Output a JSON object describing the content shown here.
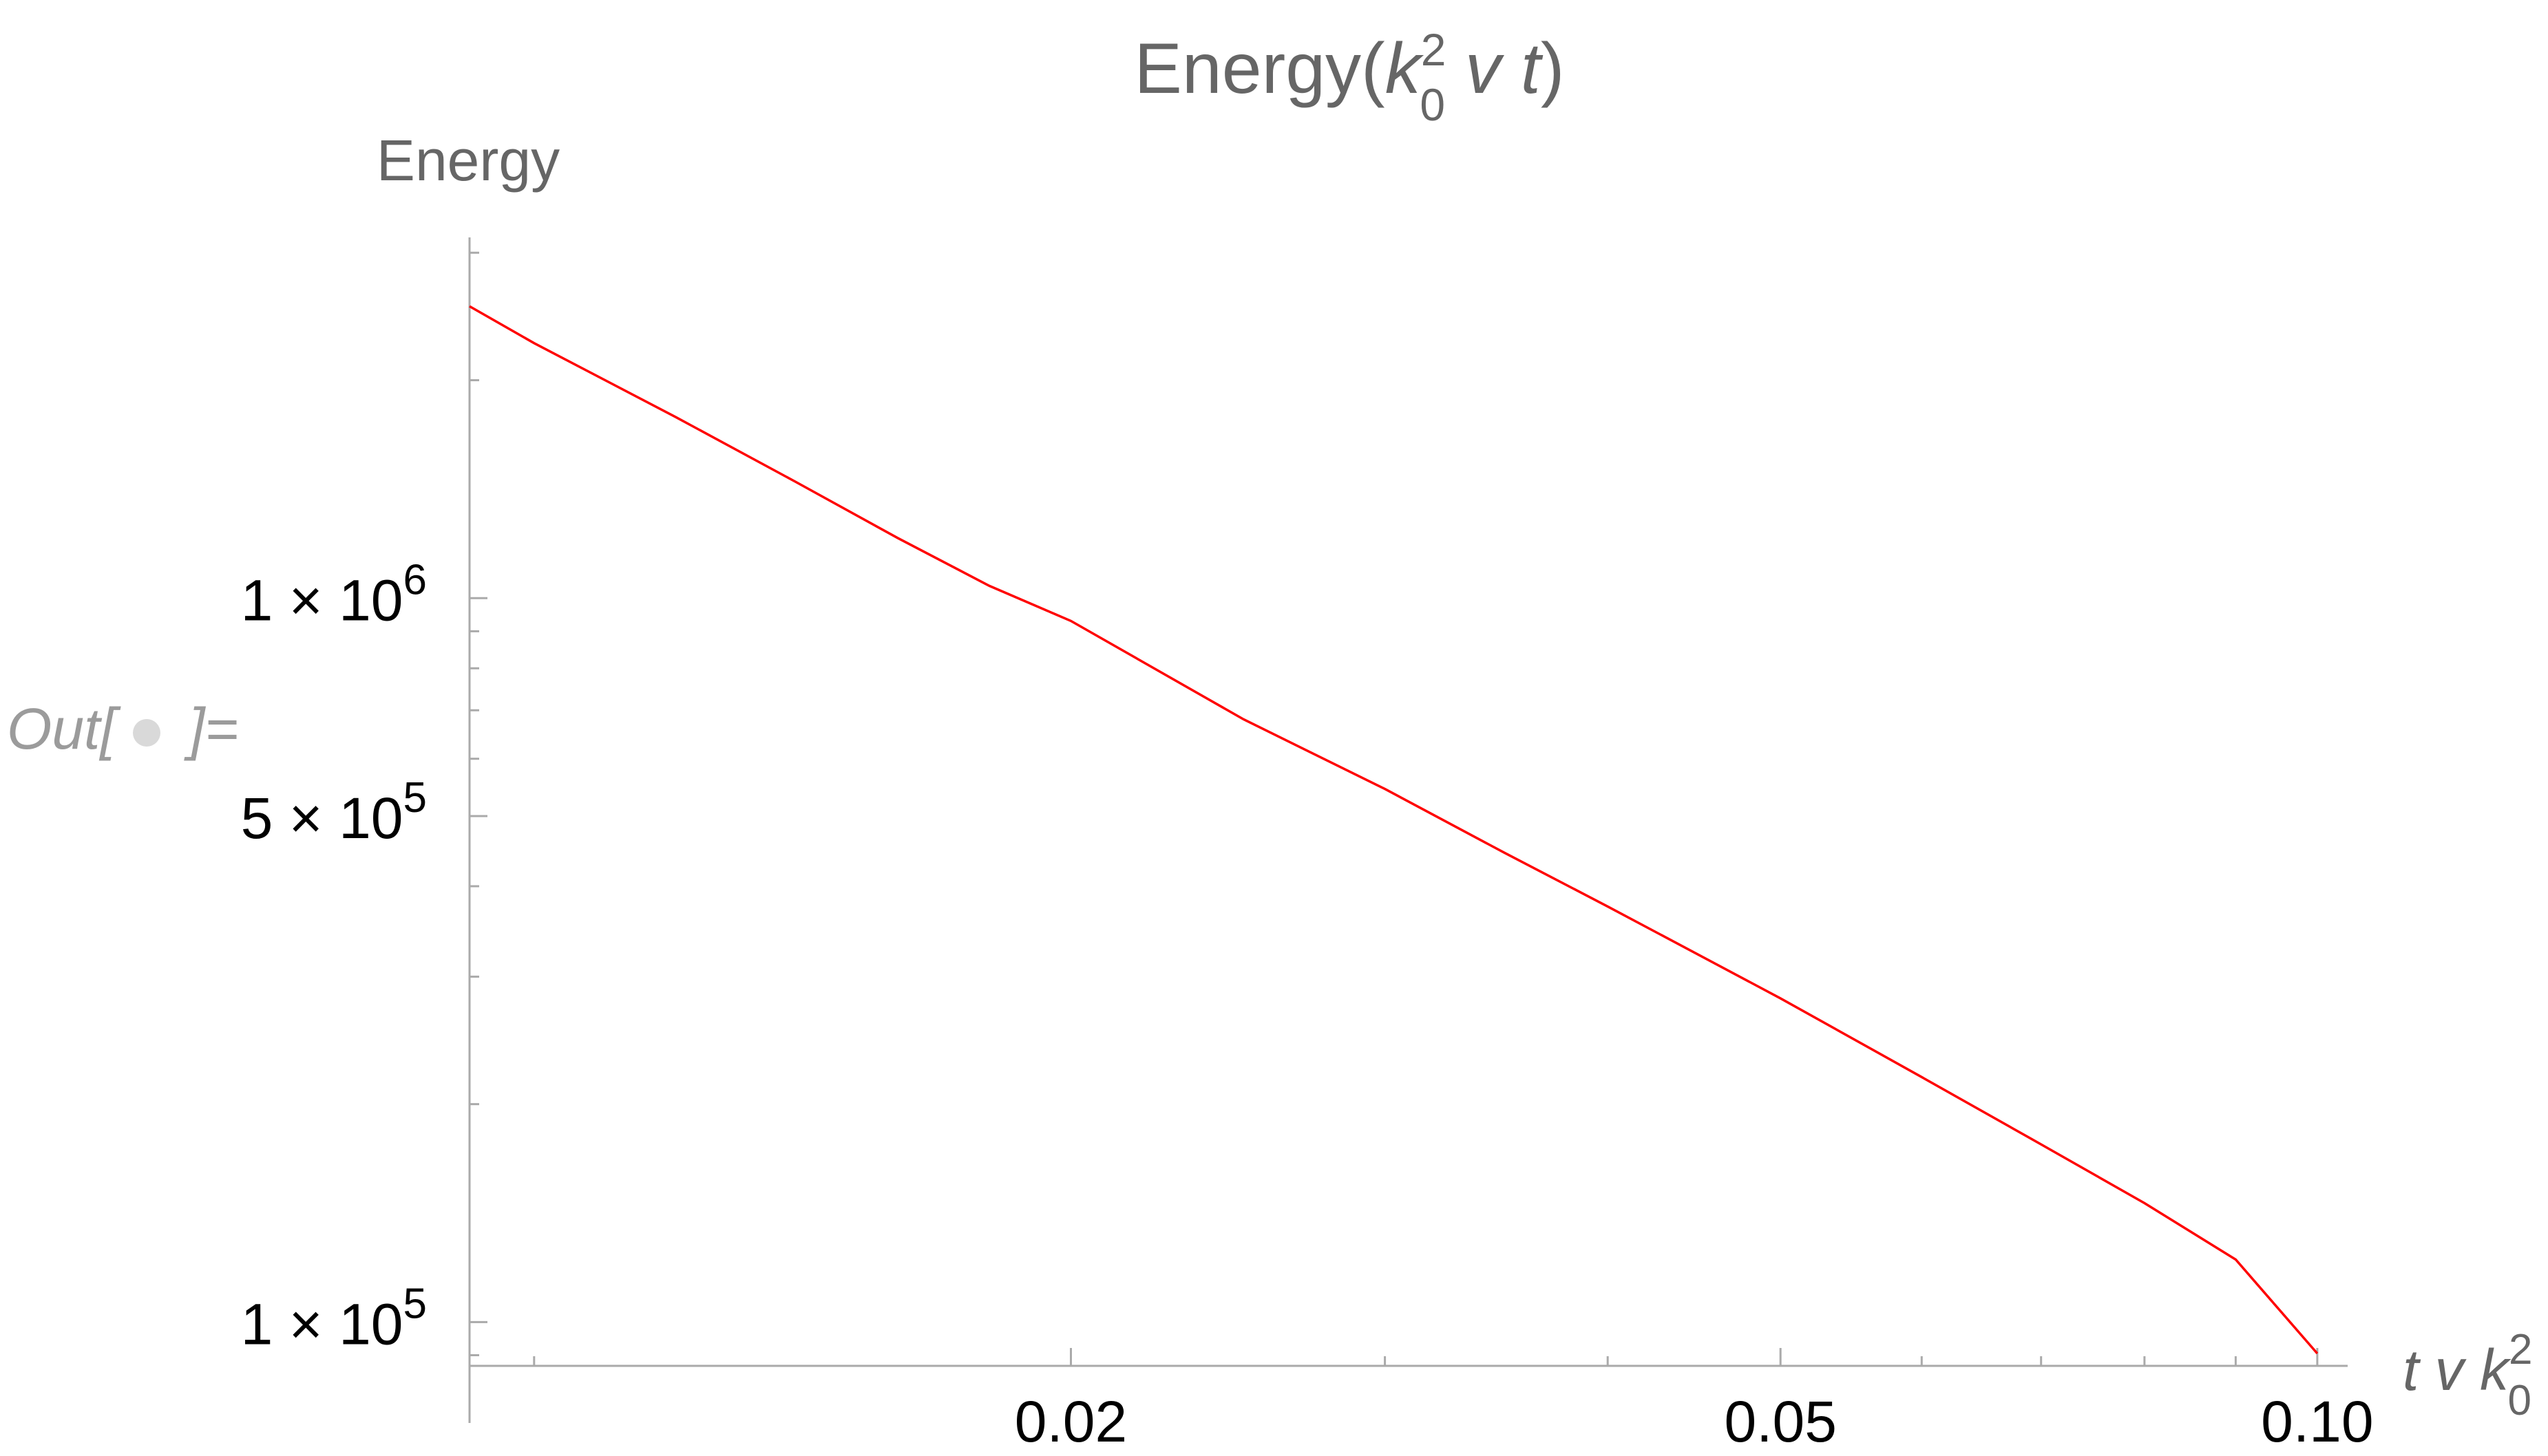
{
  "notebook": {
    "out_label": "Out[",
    "out_label_end": "]="
  },
  "colors": {
    "curve": "#ff0000",
    "axis": "#aaaaaa",
    "text": "#666666",
    "ticks_text": "#000000",
    "out_marker": "#d9d9d9"
  },
  "chart_data": {
    "type": "line",
    "scale": "log-log",
    "title": {
      "base": "Energy(",
      "k": "k",
      "sup": "2",
      "sub": "0",
      "rest": " v t",
      "close": ")"
    },
    "ylabel": "Energy",
    "xlabel": {
      "base": "t v ",
      "k": "k",
      "sup": "2",
      "sub": "0"
    },
    "xlim": [
      0.0092,
      0.104
    ],
    "ylim": [
      87000,
      3150000
    ],
    "x_ticks": [
      {
        "value": 0.02,
        "label": "0.02"
      },
      {
        "value": 0.05,
        "label": "0.05"
      },
      {
        "value": 0.1,
        "label": "0.10"
      }
    ],
    "y_ticks": [
      {
        "value": 100000,
        "mantissa": "1",
        "times": "×",
        "base": "10",
        "exp": "5"
      },
      {
        "value": 500000,
        "mantissa": "5",
        "times": "×",
        "base": "10",
        "exp": "5"
      },
      {
        "value": 1000000,
        "mantissa": "1",
        "times": "×",
        "base": "10",
        "exp": "6"
      }
    ],
    "series": [
      {
        "x": [
          0.0092,
          0.01,
          0.012,
          0.014,
          0.016,
          0.018,
          0.02,
          0.025,
          0.03,
          0.035,
          0.04,
          0.05,
          0.06,
          0.07,
          0.08,
          0.09,
          0.1
        ],
        "y": [
          2530000,
          2250000,
          1780000,
          1450000,
          1210000,
          1040000,
          930000,
          680000,
          545000,
          445000,
          375000,
          280000,
          218000,
          176000,
          146000,
          122000,
          90500
        ]
      }
    ]
  }
}
